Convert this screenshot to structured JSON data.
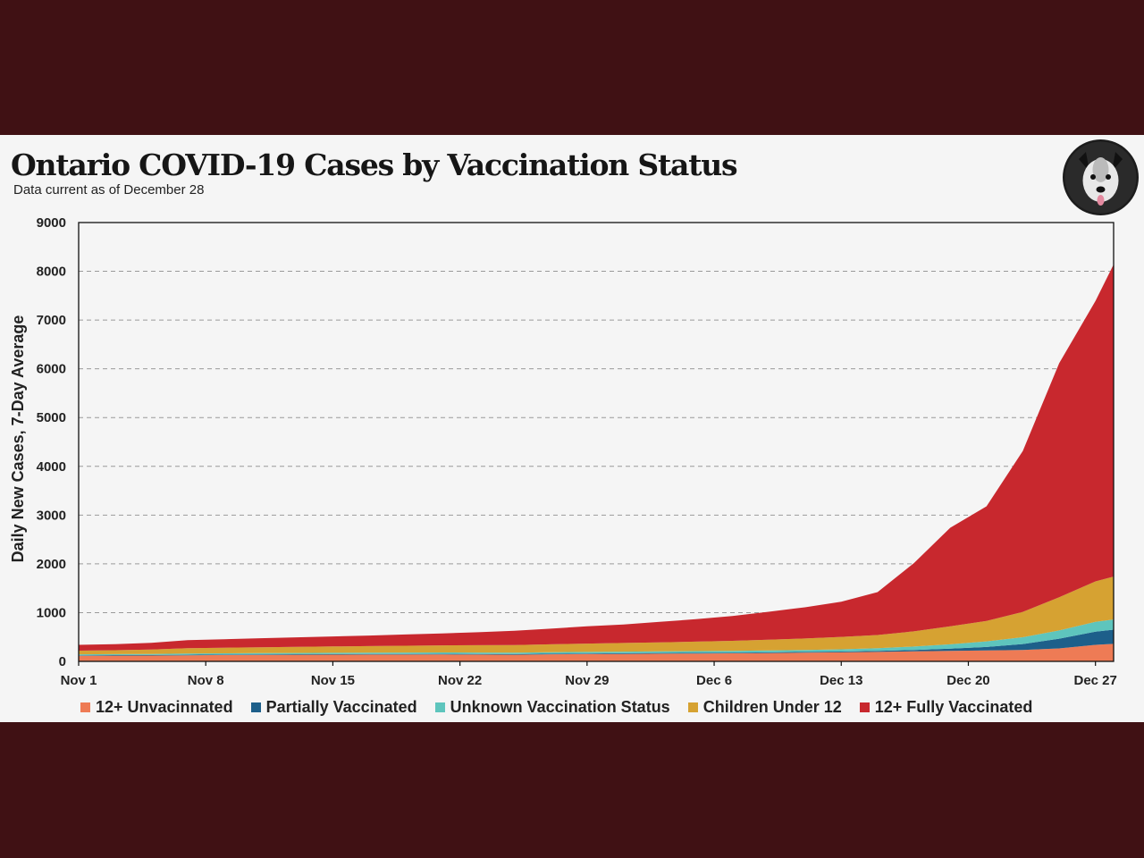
{
  "header": {
    "title": "Ontario COVID-19 Cases by Vaccination Status",
    "subtitle": "Data current as of December 28"
  },
  "logo": {
    "icon": "dog-face-logo-icon"
  },
  "chart_data": {
    "type": "area",
    "stacked": true,
    "title": "Ontario COVID-19 Cases by Vaccination Status",
    "subtitle": "Data current as of December 28",
    "xlabel": "",
    "ylabel": "Daily New Cases, 7-Day Average",
    "ylim": [
      0,
      9000
    ],
    "yticks": [
      0,
      1000,
      2000,
      3000,
      4000,
      5000,
      6000,
      7000,
      8000,
      9000
    ],
    "grid": "horizontal dashed",
    "legend_position": "bottom",
    "x_tick_labels": [
      "Nov 1",
      "Nov 8",
      "Nov 15",
      "Nov 22",
      "Nov 29",
      "Dec 6",
      "Dec 13",
      "Dec 20",
      "Dec 27"
    ],
    "x_tick_days": [
      0,
      7,
      14,
      21,
      28,
      35,
      42,
      49,
      56
    ],
    "x_dates": [
      "Nov 1",
      "Nov 3",
      "Nov 5",
      "Nov 7",
      "Nov 9",
      "Nov 11",
      "Nov 13",
      "Nov 15",
      "Nov 17",
      "Nov 19",
      "Nov 21",
      "Nov 23",
      "Nov 25",
      "Nov 27",
      "Nov 29",
      "Dec 1",
      "Dec 3",
      "Dec 5",
      "Dec 7",
      "Dec 9",
      "Dec 11",
      "Dec 13",
      "Dec 15",
      "Dec 17",
      "Dec 19",
      "Dec 21",
      "Dec 23",
      "Dec 25",
      "Dec 27",
      "Dec 28"
    ],
    "x_days": [
      0,
      2,
      4,
      6,
      8,
      10,
      12,
      14,
      16,
      18,
      20,
      22,
      24,
      26,
      28,
      30,
      32,
      34,
      36,
      38,
      40,
      42,
      44,
      46,
      48,
      50,
      52,
      54,
      56,
      57
    ],
    "series": [
      {
        "name": "12+ Unvacinnated",
        "color": "#ee7b55",
        "values": [
          115,
          118,
          120,
          125,
          130,
          133,
          135,
          137,
          139,
          140,
          142,
          140,
          136,
          145,
          150,
          153,
          158,
          162,
          165,
          170,
          178,
          185,
          195,
          205,
          215,
          225,
          235,
          265,
          340,
          360
        ]
      },
      {
        "name": "Partially Vaccinated",
        "color": "#1d5f8a",
        "values": [
          10,
          10,
          10,
          11,
          11,
          11,
          12,
          12,
          12,
          12,
          12,
          12,
          12,
          13,
          13,
          13,
          14,
          14,
          15,
          15,
          16,
          17,
          20,
          30,
          45,
          70,
          120,
          200,
          270,
          290
        ]
      },
      {
        "name": "Unknown Vaccination Status",
        "color": "#5ec5bd",
        "values": [
          20,
          21,
          22,
          23,
          24,
          25,
          26,
          27,
          28,
          29,
          30,
          30,
          30,
          31,
          32,
          33,
          34,
          35,
          36,
          38,
          40,
          45,
          55,
          70,
          90,
          115,
          140,
          170,
          200,
          210
        ]
      },
      {
        "name": "Children Under 12",
        "color": "#d6a232",
        "values": [
          75,
          80,
          90,
          110,
          115,
          120,
          125,
          130,
          135,
          140,
          145,
          150,
          158,
          162,
          170,
          178,
          185,
          195,
          205,
          220,
          235,
          255,
          270,
          310,
          370,
          420,
          520,
          680,
          830,
          880
        ]
      },
      {
        "name": "12+ Fully Vaccinated",
        "color": "#c8282e",
        "values": [
          120,
          125,
          140,
          165,
          175,
          185,
          195,
          205,
          215,
          230,
          245,
          265,
          290,
          320,
          355,
          380,
          420,
          460,
          510,
          575,
          640,
          720,
          880,
          1400,
          2020,
          2350,
          3300,
          4800,
          5750,
          6400
        ]
      }
    ]
  }
}
